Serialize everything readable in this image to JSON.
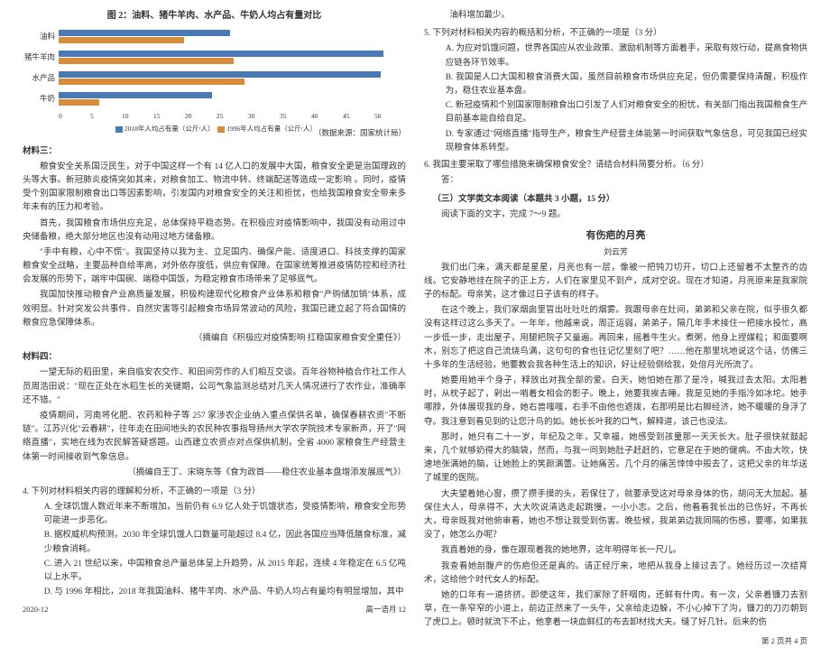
{
  "chart": {
    "title": "图 2：油料、猪牛羊肉、水产品、牛奶人均占有量对比",
    "categories": [
      "油料",
      "猪牛羊肉",
      "水产品",
      "牛奶"
    ],
    "series": [
      {
        "name": "2018年人均占有量（公斤/人）",
        "color": "#4a7ab5",
        "values": [
          24.7,
          46.8,
          46.4,
          22.1
        ]
      },
      {
        "name": "1996年人均占有量（公斤/人）",
        "color": "#d98c3a",
        "values": [
          18.1,
          25.2,
          26.7,
          5.8
        ]
      }
    ],
    "xticks": [
      "0",
      "5",
      "10",
      "15",
      "20",
      "25",
      "30",
      "35",
      "40",
      "45",
      "50"
    ],
    "xmax": 50,
    "source": "（数据来源：国家统计局）",
    "background": "#ffffff",
    "grid_color": "#dddddd"
  },
  "mat3": {
    "head": "材料三：",
    "p1": "粮食安全关系国泛民生，对于中国这样一个有 14 亿人口的发展中大国，粮食安全更是治国理政的头等大事。新冠肺炎疫情突如其来，对粮食加工、物流中转、终端配送等造成一定影响 。同时，疫情受个别国家限制粮食出口等因素影响，引发国内对粮食安全的关注和担忧，也给我国粮食安全带来多年未有的压力和考验。",
    "p2": "首先，我国粮食市场供应充足，总体保持平稳态势。在积极应对疫情影响中，我国没有动用过中央储备粮，绝大部分地区也没有动用过地方储备粮。",
    "p3": "\"手中有粮，心中不慌\"。我国坚持以我为主、立足国内、确保产能、适度进口、科技支撑的国家粮食安全战略，主要品种自给率高，对外依存度低，供应有保障。在国家统筹推进疫情防控和经济社会发展的形势下，端牢中国碗、端稳中国饭，为稳定粮食市场带来了足够底气。",
    "p4": "我国加快推动粮食产业高质量发展，积极构建现代化粮食产业体系和粮食\"产购储加销\"体系，成效明显。针对突发公共事件、自然灾害等引起粮食市场异常波动的风险，我国已建立起了符合国情的粮食应急保障体系。",
    "cite": "（摘编自《积极应对疫情影响 扛稳国家粮食安全重任》）"
  },
  "mat4": {
    "head": "材料四：",
    "p1": "一望无际的稻田里，来自临安农交作、和田间劳作的人们相互交谈。百年谷物种植合作社工作人员周浩田说：\"现在正处在水稻生长的关键期，公司气象监测总结对几天人情况进行了农作业，准确率还不错。\"",
    "p2": "疫情期间，河南将化肥、农药和种子等 257 家涉农企业纳入重点保供名单，确保春耕农资\"不断链\"。江苏兴化\"云春耕\"，往年走在田间地头的农民种农事指导扬州大学农学院技术专家新声，开了\"网络直播\"，实地在线为农民解答疑惑题。山西建立农资点对点保供机制，全省 4000 家粮食生产经营主体第一时间接收到气象信息。",
    "cite": "（摘编自王丁、宋晓东等《食为政首——稳住农业基本盘增添发展底气》）"
  },
  "q4": {
    "stem": "4. 下列对材料相关内容的理解和分析，不正确的一项是（3 分）",
    "A": "A. 全球饥饿人数近年来不断增加，当前仍有 6.9 亿人处于饥饿状态，受疫情影响，粮食安全形势可能进一步恶化。",
    "B": "B. 据权威机构预测，2030 年全球饥饿人口数量可能超过 8.4 亿，因此各国应当降低膳食标准，减少粮食消耗。",
    "C": "C. 进入 21 世纪以来，中国粮食总产量总体呈上升趋势，从 2015 年起，连续 4 年稳定在 6.5 亿吨以上水平。",
    "D": "D. 与 1996 年相比，2018 年我国油料、猪牛羊肉、水产品、牛奶人均占有量均有明显增加，其中"
  },
  "q5": {
    "cont": "油料增加最少。",
    "stem": "5. 下列对材料相关内容的概括和分析，不正确的一项是（3 分）",
    "A": "A. 为应对饥饿问题，世界各国应从农业政策、激励机制等方面着手，采取有效行动，提高食物供应链各环节效率。",
    "B": "B. 我国是人口大国和粮食消费大国，虽然目前粮食市场供应充足，但仍需要保持清醒，积极作为，稳住农业基本盘。",
    "C": "C. 新冠疫情和个别国家限制粮食出口引发了人们对粮食安全的担忧，有关部门指出我国粮食生产目前基本能自给自足。",
    "D": "D. 专家通过\"网络直播\"指导生产，粮食生产经营主体能第一时间获取气象信息，可见我国已经实现粮食体系转型。"
  },
  "q6": {
    "stem": "6. 我国主要采取了哪些措施来确保粮食安全？请结合材料简要分析。（6 分）",
    "ans": "答："
  },
  "reading": {
    "head": "（三）文学类文本阅读（本题共 3 小题，15 分）",
    "instr": "阅读下面的文字，完成 7～9 题。",
    "title": "有伤疤的月亮",
    "author": "刘云芳",
    "p1": "我们出门来，满天都是星星，月亮也有一层，像被一把钝刀切开，切口上还留着不太整齐的齿线。它安静地挂在院子的正上方，人们在家里见不到产，成对空说。现在才知道，月亮原来是我家院子的标配。母亲笑，这才像过日子该有的样子。",
    "p2": "在这个晚上，我们家烟囱里冒出吐吐吐的烟雾。我跟母亲在灶间，弟弟和父亲在院，似乎很久都没有这样过这么多天了。一年年，他越来说，周正运弱，弟弟子，隔几年手术接住一把接水投忙，高一步低一步，走出屋子，用腿把院子又量遍。再回来，摇着牛生火。煮粥，他身上捏媒粒；和面要啊木，别忘了把这自己流烧鸟满，这句句的食也往记忆里刻了吧？……他在那里坑地说这个话，仿佛三十多年的生活经验，他要教会我各种生活上的知识，好让经验倒给我，处倍月光所流了。",
    "p3": "她要用她半个身子，释放出对我全部的爱。白天，她怕她在那了是冷，喊我过去太阳。太阳着时，从枕子起了，剁出一哨着女相会的影子。晚上，她要我挨去睡。我是见她的手指冷如冰坨。她手哪脖，外体展现我的身，她右兽嗤嗤，右手不由他也遮拨，右那明是比右脚经济，她不暖暖的身浮了夺。我注意到看见到的让您汁鸟的如。她长长叶我的口气，解释道，该己也没法。",
    "p4": "那时，她只有二十一岁，年纪及之年，又幸福，她感受到孩童那一天天长大。肚子很快就鼓起来，几个就够奶得大的脑袋，然而，与我一同到她肚子赶赶的，它意足在于她的健病。不由大吹，快速地张满她的脑，让她脸上的笑颜满蕾。让她痛苦。几个月的痛苦悻悻中般去了，这把父亲的年华送了城里的医院。",
    "p5": "大夫望着她心窗，攒了攒手摸的头，若保住了，就要承受这对母亲身体的伤，胡问无大加起。基保住大人，母亲得不，大大吹说清选走起跳慢，一小小志。之后，他看看我长出的已伤好，不再长大，母亲既我对他俯审看，她也不想让我受到伤害。晚些候，我弟弟边我同隔的伤感，要哪，如果我没了，她怎么办呢？",
    "p6": "我直着她的身，像在跟现着我的她地界，这年明得年长一尺儿。",
    "p7": "我查看她剖腹产的伤疤但还是真的。请正经厅来，地把从我身上接过去了。她经历过一次结育术，这给他个时代女人的标配。",
    "p8": "她的口年有一道挤挤。即使这年，我们家除了肝咽肉，还鲜有什肉。有一次，父亲着镰刀去割草，在一条窄窄的小道上，前边正然来了一头牛，父亲给走边躲，不小心掉下了沟，镰刀的刀刃朝到了虎口上。顿时就流下不止，他拿着一块血鲜红的布去卸材找大夫。缝了好几针。后来的伤",
    "footer_left": "2020-12",
    "footer_center": "高一语月 12",
    "footer_right": "第 2 页共 4 页"
  }
}
